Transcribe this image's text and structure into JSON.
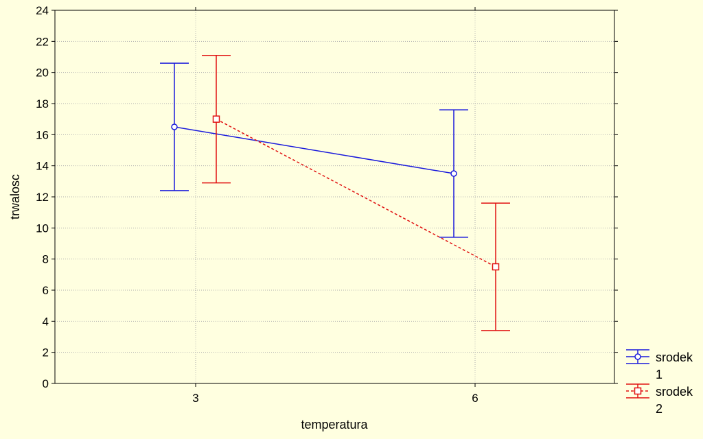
{
  "chart_data": {
    "type": "line",
    "title": "",
    "xlabel": "temperatura",
    "ylabel": "trwalosc",
    "categories": [
      "3",
      "6"
    ],
    "ylim": [
      0,
      24
    ],
    "yticks": [
      0,
      2,
      4,
      6,
      8,
      10,
      12,
      14,
      16,
      18,
      20,
      22,
      24
    ],
    "grid": true,
    "legend_position": "bottom-right",
    "error_bars": true,
    "series": [
      {
        "name_line1": "srodek",
        "name_line2": "1",
        "color": "#1a1adc",
        "line_style": "solid",
        "marker": "circle",
        "values": [
          16.5,
          13.5
        ],
        "lower": [
          12.4,
          9.4
        ],
        "upper": [
          20.6,
          17.6
        ]
      },
      {
        "name_line1": "srodek",
        "name_line2": "2",
        "color": "#e01010",
        "line_style": "dashed",
        "marker": "square",
        "values": [
          17.0,
          7.5
        ],
        "lower": [
          12.9,
          3.4
        ],
        "upper": [
          21.1,
          11.6
        ]
      }
    ]
  }
}
